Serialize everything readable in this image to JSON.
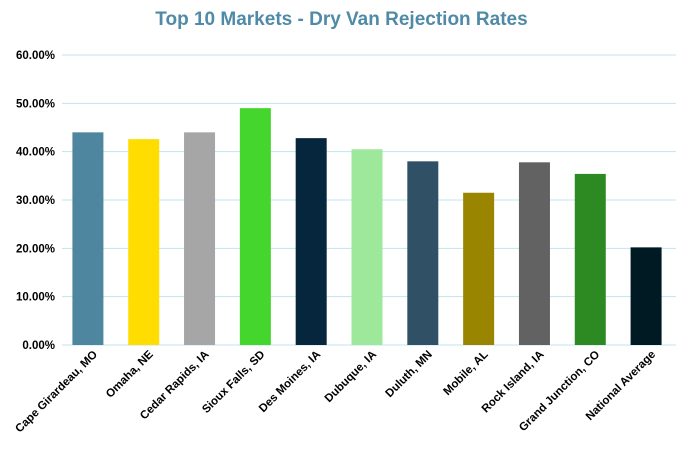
{
  "chart_data": {
    "type": "bar",
    "title": "Top 10 Markets - Dry Van Rejection Rates",
    "xlabel": "",
    "ylabel": "",
    "ylim": [
      0,
      0.6
    ],
    "yticks": [
      "0.00%",
      "10.00%",
      "20.00%",
      "30.00%",
      "40.00%",
      "50.00%",
      "60.00%"
    ],
    "grid": true,
    "legend": "none",
    "categories": [
      "Cape Girardeau, MO",
      "Omaha, NE",
      "Cedar Rapids, IA",
      "Sioux Falls, SD",
      "Des Moines, IA",
      "Dubuque, IA",
      "Duluth, MN",
      "Mobile, AL",
      "Rock Island, IA",
      "Grand Junction, CO",
      "National Average"
    ],
    "values": [
      0.44,
      0.426,
      0.44,
      0.49,
      0.428,
      0.405,
      0.38,
      0.315,
      0.378,
      0.354,
      0.202
    ],
    "colors": [
      "#4e86a0",
      "#ffdd00",
      "#a6a6a6",
      "#44d62c",
      "#05263c",
      "#9de89a",
      "#2f5065",
      "#9a8500",
      "#626262",
      "#2d8a22",
      "#001a24"
    ],
    "title_color": "#4f8aa6",
    "grid_color": "#bfe4ef"
  }
}
